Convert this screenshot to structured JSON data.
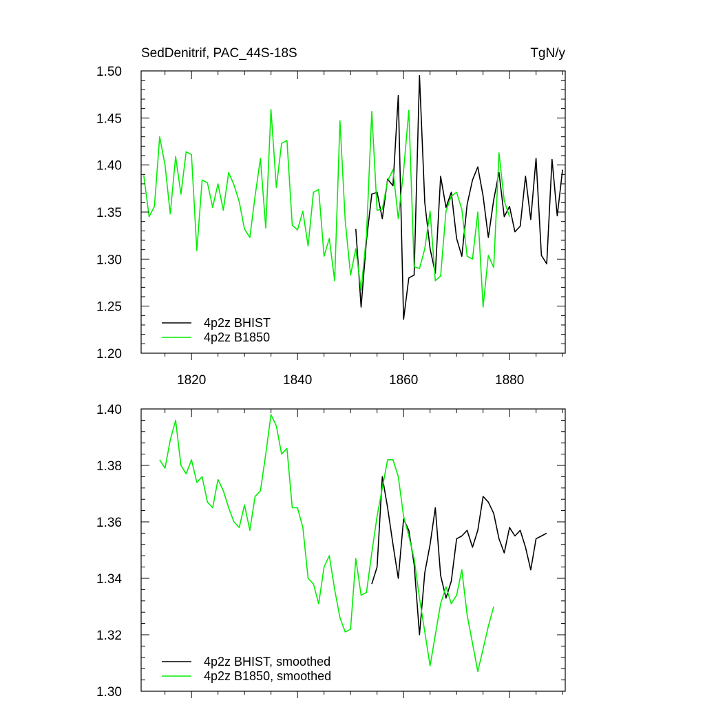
{
  "header": {
    "left_title": "SedDenitrif, PAC_44S-18S",
    "right_units": "TgN/y"
  },
  "colors": {
    "bhist": "#000000",
    "b1850": "#00ee00",
    "axes": "#000000",
    "background": "#ffffff"
  },
  "chart_data": [
    {
      "type": "line",
      "title": "SedDenitrif, PAC_44S-18S",
      "units": "TgN/y",
      "xlim": [
        1810.5,
        1890.5
      ],
      "ylim": [
        1.2,
        1.5
      ],
      "xticks": [
        1820,
        1840,
        1860,
        1880
      ],
      "xtick_labels": [
        "1820",
        "1840",
        "1860",
        "1880"
      ],
      "yticks": [
        1.2,
        1.25,
        1.3,
        1.35,
        1.4,
        1.45,
        1.5
      ],
      "ytick_labels": [
        "1.20",
        "1.25",
        "1.30",
        "1.35",
        "1.40",
        "1.45",
        "1.50"
      ],
      "show_xtick_labels": true,
      "grid": false,
      "legend_position": "bottom-left",
      "series": [
        {
          "name": "4p2z BHIST",
          "color": "#000000",
          "x": [
            1851,
            1852,
            1853,
            1854,
            1855,
            1856,
            1857,
            1858,
            1859,
            1860,
            1861,
            1862,
            1863,
            1864,
            1865,
            1866,
            1867,
            1868,
            1869,
            1870,
            1871,
            1872,
            1873,
            1874,
            1875,
            1876,
            1877,
            1878,
            1879,
            1880,
            1881,
            1882,
            1883,
            1884,
            1885,
            1886,
            1887,
            1888,
            1889,
            1890
          ],
          "y": [
            1.332,
            1.249,
            1.32,
            1.369,
            1.371,
            1.343,
            1.385,
            1.378,
            1.474,
            1.236,
            1.28,
            1.283,
            1.495,
            1.36,
            1.311,
            1.285,
            1.388,
            1.355,
            1.371,
            1.322,
            1.303,
            1.358,
            1.384,
            1.398,
            1.367,
            1.323,
            1.363,
            1.392,
            1.345,
            1.356,
            1.329,
            1.335,
            1.388,
            1.342,
            1.407,
            1.304,
            1.295,
            1.406,
            1.346,
            1.395
          ]
        },
        {
          "name": "4p2z B1850",
          "color": "#00ee00",
          "x": [
            1811,
            1812,
            1813,
            1814,
            1815,
            1816,
            1817,
            1818,
            1819,
            1820,
            1821,
            1822,
            1823,
            1824,
            1825,
            1826,
            1827,
            1828,
            1829,
            1830,
            1831,
            1832,
            1833,
            1834,
            1835,
            1836,
            1837,
            1838,
            1839,
            1840,
            1841,
            1842,
            1843,
            1844,
            1845,
            1846,
            1847,
            1848,
            1849,
            1850,
            1851,
            1852,
            1853,
            1854,
            1855,
            1856,
            1857,
            1858,
            1859,
            1860,
            1861,
            1862,
            1863,
            1864,
            1865,
            1866,
            1867,
            1868,
            1869,
            1870,
            1871,
            1872,
            1873,
            1874,
            1875,
            1876,
            1877,
            1878,
            1879,
            1880
          ],
          "y": [
            1.389,
            1.345,
            1.356,
            1.43,
            1.4,
            1.348,
            1.409,
            1.369,
            1.414,
            1.411,
            1.309,
            1.384,
            1.381,
            1.355,
            1.38,
            1.352,
            1.392,
            1.379,
            1.361,
            1.332,
            1.323,
            1.367,
            1.407,
            1.333,
            1.459,
            1.376,
            1.423,
            1.426,
            1.336,
            1.331,
            1.351,
            1.314,
            1.371,
            1.374,
            1.303,
            1.322,
            1.277,
            1.447,
            1.341,
            1.283,
            1.311,
            1.267,
            1.325,
            1.457,
            1.352,
            1.353,
            1.383,
            1.395,
            1.343,
            1.394,
            1.458,
            1.292,
            1.29,
            1.311,
            1.351,
            1.277,
            1.282,
            1.351,
            1.367,
            1.371,
            1.353,
            1.303,
            1.3,
            1.35,
            1.249,
            1.304,
            1.291,
            1.413,
            1.362,
            1.345
          ]
        }
      ]
    },
    {
      "type": "line",
      "title": "",
      "xlim": [
        1810.5,
        1890.5
      ],
      "ylim": [
        1.3,
        1.4
      ],
      "xticks": [
        1820,
        1840,
        1860,
        1880
      ],
      "yticks": [
        1.3,
        1.32,
        1.34,
        1.36,
        1.38,
        1.4
      ],
      "ytick_labels": [
        "1.30",
        "1.32",
        "1.34",
        "1.36",
        "1.38",
        "1.40"
      ],
      "show_xtick_labels": false,
      "grid": false,
      "legend_position": "bottom-left",
      "series": [
        {
          "name": "4p2z BHIST, smoothed",
          "color": "#000000",
          "x": [
            1854,
            1855,
            1856,
            1857,
            1858,
            1859,
            1860,
            1861,
            1862,
            1863,
            1864,
            1865,
            1866,
            1867,
            1868,
            1869,
            1870,
            1871,
            1872,
            1873,
            1874,
            1875,
            1876,
            1877,
            1878,
            1879,
            1880,
            1881,
            1882,
            1883,
            1884,
            1885,
            1886,
            1887
          ],
          "y": [
            1.338,
            1.344,
            1.376,
            1.365,
            1.352,
            1.34,
            1.361,
            1.357,
            1.345,
            1.32,
            1.342,
            1.352,
            1.365,
            1.341,
            1.333,
            1.339,
            1.354,
            1.355,
            1.357,
            1.351,
            1.357,
            1.369,
            1.367,
            1.363,
            1.354,
            1.349,
            1.358,
            1.355,
            1.357,
            1.351,
            1.343,
            1.354,
            1.355,
            1.356
          ]
        },
        {
          "name": "4p2z B1850, smoothed",
          "color": "#00ee00",
          "x": [
            1814,
            1815,
            1816,
            1817,
            1818,
            1819,
            1820,
            1821,
            1822,
            1823,
            1824,
            1825,
            1826,
            1827,
            1828,
            1829,
            1830,
            1831,
            1832,
            1833,
            1834,
            1835,
            1836,
            1837,
            1838,
            1839,
            1840,
            1841,
            1842,
            1843,
            1844,
            1845,
            1846,
            1847,
            1848,
            1849,
            1850,
            1851,
            1852,
            1853,
            1854,
            1855,
            1856,
            1857,
            1858,
            1859,
            1860,
            1861,
            1862,
            1863,
            1864,
            1865,
            1866,
            1867,
            1868,
            1869,
            1870,
            1871,
            1872,
            1873,
            1874,
            1875,
            1876,
            1877
          ],
          "y": [
            1.382,
            1.379,
            1.389,
            1.396,
            1.38,
            1.377,
            1.382,
            1.374,
            1.376,
            1.367,
            1.365,
            1.375,
            1.371,
            1.365,
            1.36,
            1.358,
            1.366,
            1.357,
            1.369,
            1.371,
            1.384,
            1.398,
            1.394,
            1.384,
            1.386,
            1.365,
            1.365,
            1.358,
            1.34,
            1.338,
            1.331,
            1.344,
            1.348,
            1.336,
            1.326,
            1.321,
            1.322,
            1.347,
            1.334,
            1.335,
            1.349,
            1.362,
            1.372,
            1.382,
            1.382,
            1.376,
            1.362,
            1.355,
            1.347,
            1.333,
            1.321,
            1.309,
            1.32,
            1.331,
            1.337,
            1.331,
            1.334,
            1.343,
            1.327,
            1.317,
            1.307,
            1.315,
            1.323,
            1.33
          ]
        }
      ]
    }
  ]
}
